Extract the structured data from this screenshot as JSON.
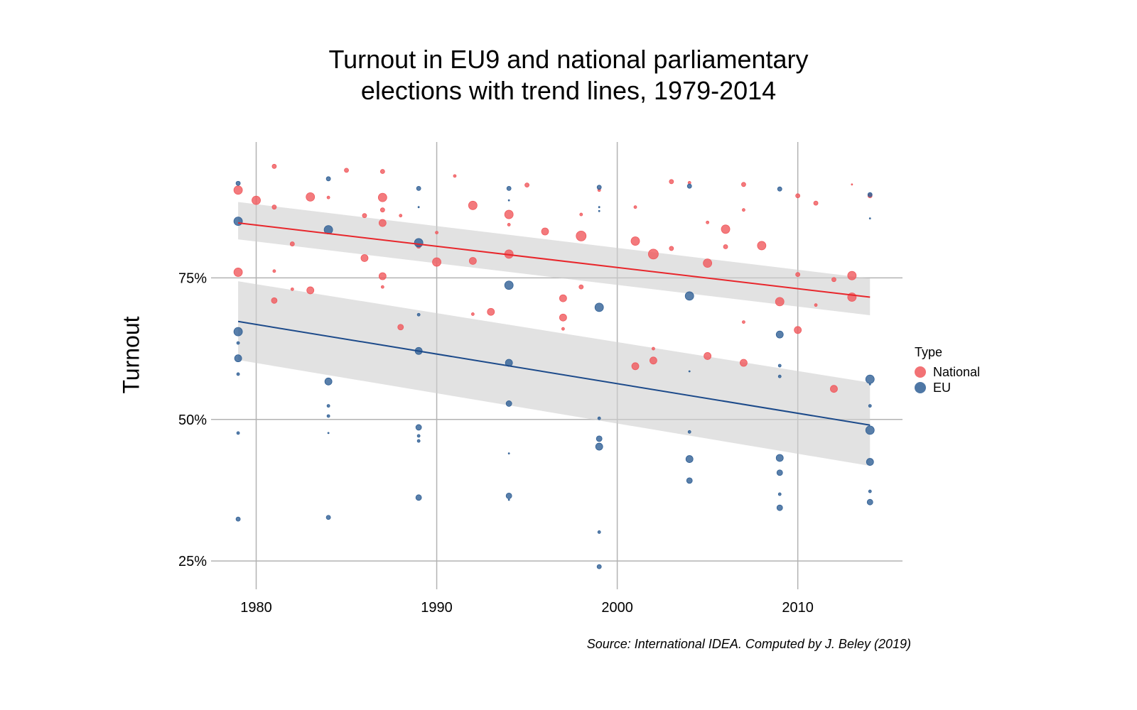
{
  "chart_data": {
    "type": "scatter",
    "title": "Turnout in EU9 and national parliamentary\nelections with trend lines, 1979-2014",
    "xlabel": "",
    "ylabel": "Turnout",
    "xlim": [
      1977.5,
      2015.8
    ],
    "ylim": [
      0.2,
      0.99
    ],
    "x_ticks": [
      1980,
      1990,
      2000,
      2010
    ],
    "x_tick_labels": [
      "1980",
      "1990",
      "2000",
      "2010"
    ],
    "y_ticks": [
      0.25,
      0.5,
      0.75
    ],
    "y_tick_labels": [
      "25%",
      "50%",
      "75%"
    ],
    "grid": true,
    "legend": {
      "title": "Type",
      "position": "right"
    },
    "caption": "Source: International IDEA. Computed by J. Beley (2019)",
    "series": [
      {
        "name": "National",
        "color": "#f0595d",
        "points": [
          {
            "x": 1979,
            "y": 0.905,
            "size": 6
          },
          {
            "x": 1979,
            "y": 0.76,
            "size": 6
          },
          {
            "x": 1980,
            "y": 0.887,
            "size": 6
          },
          {
            "x": 1981,
            "y": 0.947,
            "size": 3
          },
          {
            "x": 1981,
            "y": 0.875,
            "size": 3
          },
          {
            "x": 1981,
            "y": 0.762,
            "size": 2
          },
          {
            "x": 1981,
            "y": 0.71,
            "size": 4
          },
          {
            "x": 1982,
            "y": 0.81,
            "size": 3
          },
          {
            "x": 1982,
            "y": 0.73,
            "size": 2
          },
          {
            "x": 1983,
            "y": 0.893,
            "size": 6
          },
          {
            "x": 1983,
            "y": 0.728,
            "size": 5
          },
          {
            "x": 1984,
            "y": 0.892,
            "size": 2
          },
          {
            "x": 1985,
            "y": 0.94,
            "size": 3
          },
          {
            "x": 1986,
            "y": 0.86,
            "size": 3
          },
          {
            "x": 1986,
            "y": 0.785,
            "size": 5
          },
          {
            "x": 1987,
            "y": 0.938,
            "size": 3
          },
          {
            "x": 1987,
            "y": 0.892,
            "size": 6
          },
          {
            "x": 1987,
            "y": 0.87,
            "size": 3
          },
          {
            "x": 1987,
            "y": 0.847,
            "size": 5
          },
          {
            "x": 1987,
            "y": 0.753,
            "size": 5
          },
          {
            "x": 1987,
            "y": 0.734,
            "size": 2
          },
          {
            "x": 1988,
            "y": 0.86,
            "size": 2
          },
          {
            "x": 1988,
            "y": 0.663,
            "size": 4
          },
          {
            "x": 1989,
            "y": 0.806,
            "size": 3
          },
          {
            "x": 1990,
            "y": 0.83,
            "size": 2
          },
          {
            "x": 1990,
            "y": 0.778,
            "size": 6
          },
          {
            "x": 1991,
            "y": 0.93,
            "size": 2
          },
          {
            "x": 1992,
            "y": 0.878,
            "size": 6
          },
          {
            "x": 1992,
            "y": 0.78,
            "size": 5
          },
          {
            "x": 1992,
            "y": 0.686,
            "size": 2
          },
          {
            "x": 1993,
            "y": 0.69,
            "size": 5
          },
          {
            "x": 1994,
            "y": 0.862,
            "size": 6
          },
          {
            "x": 1994,
            "y": 0.844,
            "size": 2
          },
          {
            "x": 1994,
            "y": 0.792,
            "size": 6
          },
          {
            "x": 1995,
            "y": 0.914,
            "size": 3
          },
          {
            "x": 1996,
            "y": 0.832,
            "size": 5
          },
          {
            "x": 1997,
            "y": 0.714,
            "size": 5
          },
          {
            "x": 1997,
            "y": 0.68,
            "size": 5
          },
          {
            "x": 1997,
            "y": 0.66,
            "size": 2
          },
          {
            "x": 1998,
            "y": 0.862,
            "size": 2
          },
          {
            "x": 1998,
            "y": 0.824,
            "size": 7
          },
          {
            "x": 1998,
            "y": 0.734,
            "size": 3
          },
          {
            "x": 1999,
            "y": 0.905,
            "size": 2
          },
          {
            "x": 2001,
            "y": 0.875,
            "size": 2
          },
          {
            "x": 2001,
            "y": 0.815,
            "size": 6
          },
          {
            "x": 2001,
            "y": 0.594,
            "size": 5
          },
          {
            "x": 2002,
            "y": 0.792,
            "size": 7
          },
          {
            "x": 2002,
            "y": 0.625,
            "size": 2
          },
          {
            "x": 2002,
            "y": 0.604,
            "size": 5
          },
          {
            "x": 2003,
            "y": 0.92,
            "size": 3
          },
          {
            "x": 2003,
            "y": 0.802,
            "size": 3
          },
          {
            "x": 2004,
            "y": 0.918,
            "size": 2
          },
          {
            "x": 2005,
            "y": 0.848,
            "size": 2
          },
          {
            "x": 2005,
            "y": 0.776,
            "size": 6
          },
          {
            "x": 2005,
            "y": 0.612,
            "size": 5
          },
          {
            "x": 2006,
            "y": 0.836,
            "size": 6
          },
          {
            "x": 2006,
            "y": 0.805,
            "size": 3
          },
          {
            "x": 2007,
            "y": 0.915,
            "size": 3
          },
          {
            "x": 2007,
            "y": 0.87,
            "size": 2
          },
          {
            "x": 2007,
            "y": 0.672,
            "size": 2
          },
          {
            "x": 2007,
            "y": 0.6,
            "size": 5
          },
          {
            "x": 2008,
            "y": 0.807,
            "size": 6
          },
          {
            "x": 2009,
            "y": 0.708,
            "size": 6
          },
          {
            "x": 2010,
            "y": 0.895,
            "size": 3
          },
          {
            "x": 2010,
            "y": 0.756,
            "size": 3
          },
          {
            "x": 2010,
            "y": 0.658,
            "size": 5
          },
          {
            "x": 2011,
            "y": 0.882,
            "size": 3
          },
          {
            "x": 2011,
            "y": 0.702,
            "size": 2
          },
          {
            "x": 2012,
            "y": 0.747,
            "size": 3
          },
          {
            "x": 2012,
            "y": 0.554,
            "size": 5
          },
          {
            "x": 2013,
            "y": 0.915,
            "size": 1
          },
          {
            "x": 2013,
            "y": 0.754,
            "size": 6
          },
          {
            "x": 2013,
            "y": 0.716,
            "size": 6
          },
          {
            "x": 2014,
            "y": 0.895,
            "size": 3
          }
        ],
        "trend": {
          "x": [
            1979,
            2014
          ],
          "y": [
            0.847,
            0.716
          ],
          "ci_low": [
            0.818,
            0.684
          ],
          "ci_high": [
            0.884,
            0.749
          ]
        }
      },
      {
        "name": "EU",
        "color": "#2f5f95",
        "points": [
          {
            "x": 1979,
            "y": 0.917,
            "size": 3
          },
          {
            "x": 1979,
            "y": 0.85,
            "size": 6
          },
          {
            "x": 1979,
            "y": 0.655,
            "size": 6
          },
          {
            "x": 1979,
            "y": 0.635,
            "size": 2
          },
          {
            "x": 1979,
            "y": 0.608,
            "size": 5
          },
          {
            "x": 1979,
            "y": 0.58,
            "size": 2
          },
          {
            "x": 1979,
            "y": 0.476,
            "size": 2
          },
          {
            "x": 1979,
            "y": 0.324,
            "size": 3
          },
          {
            "x": 1984,
            "y": 0.925,
            "size": 3
          },
          {
            "x": 1984,
            "y": 0.835,
            "size": 6
          },
          {
            "x": 1984,
            "y": 0.567,
            "size": 5
          },
          {
            "x": 1984,
            "y": 0.524,
            "size": 2
          },
          {
            "x": 1984,
            "y": 0.506,
            "size": 2
          },
          {
            "x": 1984,
            "y": 0.476,
            "size": 1
          },
          {
            "x": 1984,
            "y": 0.327,
            "size": 3
          },
          {
            "x": 1989,
            "y": 0.908,
            "size": 3
          },
          {
            "x": 1989,
            "y": 0.875,
            "size": 1
          },
          {
            "x": 1989,
            "y": 0.812,
            "size": 6
          },
          {
            "x": 1989,
            "y": 0.685,
            "size": 2
          },
          {
            "x": 1989,
            "y": 0.621,
            "size": 5
          },
          {
            "x": 1989,
            "y": 0.486,
            "size": 4
          },
          {
            "x": 1989,
            "y": 0.471,
            "size": 2
          },
          {
            "x": 1989,
            "y": 0.462,
            "size": 2
          },
          {
            "x": 1989,
            "y": 0.362,
            "size": 4
          },
          {
            "x": 1994,
            "y": 0.908,
            "size": 3
          },
          {
            "x": 1994,
            "y": 0.887,
            "size": 1
          },
          {
            "x": 1994,
            "y": 0.737,
            "size": 6
          },
          {
            "x": 1994,
            "y": 0.6,
            "size": 5
          },
          {
            "x": 1994,
            "y": 0.528,
            "size": 4
          },
          {
            "x": 1994,
            "y": 0.44,
            "size": 1
          },
          {
            "x": 1994,
            "y": 0.365,
            "size": 4
          },
          {
            "x": 1994,
            "y": 0.358,
            "size": 1
          },
          {
            "x": 1999,
            "y": 0.91,
            "size": 3
          },
          {
            "x": 1999,
            "y": 0.875,
            "size": 1
          },
          {
            "x": 1999,
            "y": 0.868,
            "size": 1
          },
          {
            "x": 1999,
            "y": 0.698,
            "size": 6
          },
          {
            "x": 1999,
            "y": 0.502,
            "size": 2
          },
          {
            "x": 1999,
            "y": 0.466,
            "size": 4
          },
          {
            "x": 1999,
            "y": 0.452,
            "size": 5
          },
          {
            "x": 1999,
            "y": 0.301,
            "size": 2
          },
          {
            "x": 1999,
            "y": 0.24,
            "size": 3
          },
          {
            "x": 2004,
            "y": 0.912,
            "size": 3
          },
          {
            "x": 2004,
            "y": 0.718,
            "size": 6
          },
          {
            "x": 2004,
            "y": 0.585,
            "size": 1
          },
          {
            "x": 2004,
            "y": 0.478,
            "size": 2
          },
          {
            "x": 2004,
            "y": 0.43,
            "size": 5
          },
          {
            "x": 2004,
            "y": 0.392,
            "size": 4
          },
          {
            "x": 2009,
            "y": 0.907,
            "size": 3
          },
          {
            "x": 2009,
            "y": 0.65,
            "size": 5
          },
          {
            "x": 2009,
            "y": 0.595,
            "size": 2
          },
          {
            "x": 2009,
            "y": 0.576,
            "size": 2
          },
          {
            "x": 2009,
            "y": 0.432,
            "size": 5
          },
          {
            "x": 2009,
            "y": 0.406,
            "size": 4
          },
          {
            "x": 2009,
            "y": 0.368,
            "size": 2
          },
          {
            "x": 2009,
            "y": 0.344,
            "size": 4
          },
          {
            "x": 2014,
            "y": 0.897,
            "size": 3
          },
          {
            "x": 2014,
            "y": 0.855,
            "size": 1
          },
          {
            "x": 2014,
            "y": 0.571,
            "size": 6
          },
          {
            "x": 2014,
            "y": 0.562,
            "size": 1
          },
          {
            "x": 2014,
            "y": 0.524,
            "size": 2
          },
          {
            "x": 2014,
            "y": 0.481,
            "size": 6
          },
          {
            "x": 2014,
            "y": 0.425,
            "size": 5
          },
          {
            "x": 2014,
            "y": 0.373,
            "size": 2
          },
          {
            "x": 2014,
            "y": 0.354,
            "size": 4
          }
        ],
        "trend": {
          "x": [
            1979,
            2014
          ],
          "y": [
            0.673,
            0.49
          ],
          "ci_low": [
            0.605,
            0.418
          ],
          "ci_high": [
            0.744,
            0.565
          ]
        }
      }
    ]
  }
}
